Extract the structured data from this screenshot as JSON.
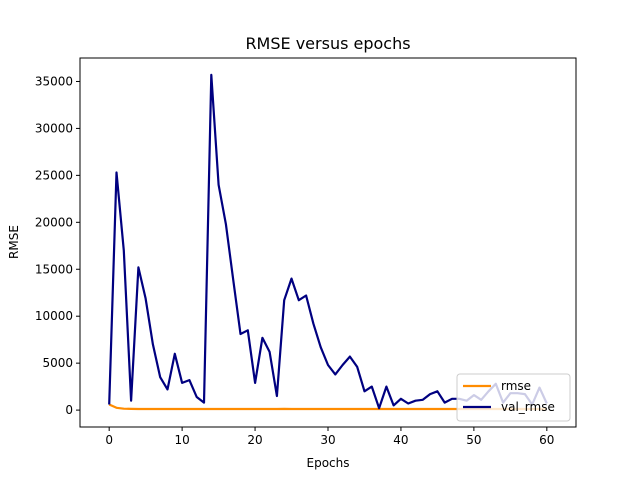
{
  "chart_data": {
    "type": "line",
    "title": "RMSE versus epochs",
    "xlabel": "Epochs",
    "ylabel": "RMSE",
    "xlim": [
      -4,
      64
    ],
    "ylim": [
      -1800,
      37500
    ],
    "xticks": [
      0,
      10,
      20,
      30,
      40,
      50,
      60
    ],
    "yticks": [
      0,
      5000,
      10000,
      15000,
      20000,
      25000,
      30000,
      35000
    ],
    "grid": false,
    "legend_position": "lower-right",
    "series": [
      {
        "name": "rmse",
        "color": "#ff8c00",
        "x": [
          0,
          1,
          2,
          3,
          4,
          5,
          6,
          7,
          8,
          9,
          10,
          11,
          12,
          13,
          14,
          15,
          16,
          17,
          18,
          19,
          20,
          21,
          22,
          23,
          24,
          25,
          26,
          27,
          28,
          29,
          30,
          31,
          32,
          33,
          34,
          35,
          36,
          37,
          38,
          39,
          40,
          41,
          42,
          43,
          44,
          45,
          46,
          47,
          48,
          49,
          50,
          51,
          52,
          53,
          54,
          55,
          56,
          57,
          58,
          59,
          60
        ],
        "y": [
          600,
          250,
          150,
          130,
          120,
          120,
          120,
          120,
          120,
          120,
          120,
          120,
          120,
          120,
          120,
          120,
          120,
          120,
          120,
          120,
          120,
          120,
          120,
          120,
          130,
          120,
          120,
          120,
          120,
          120,
          120,
          120,
          120,
          120,
          120,
          120,
          120,
          120,
          120,
          120,
          120,
          120,
          120,
          120,
          120,
          120,
          120,
          120,
          120,
          120,
          120,
          120,
          120,
          120,
          120,
          120,
          120,
          120,
          120,
          120,
          120
        ]
      },
      {
        "name": "val_rmse",
        "color": "#000080",
        "x": [
          0,
          1,
          2,
          3,
          4,
          5,
          6,
          7,
          8,
          9,
          10,
          11,
          12,
          13,
          14,
          15,
          16,
          17,
          18,
          19,
          20,
          21,
          22,
          23,
          24,
          25,
          26,
          27,
          28,
          29,
          30,
          31,
          32,
          33,
          34,
          35,
          36,
          37,
          38,
          39,
          40,
          41,
          42,
          43,
          44,
          45,
          46,
          47,
          48,
          49,
          50,
          51,
          52,
          53,
          54,
          55,
          56,
          57,
          58,
          59,
          60
        ],
        "y": [
          600,
          25300,
          17000,
          1000,
          15200,
          11900,
          7000,
          3500,
          2200,
          6000,
          2900,
          3200,
          1400,
          800,
          35700,
          24000,
          19800,
          13900,
          8100,
          8500,
          2900,
          7700,
          6200,
          1500,
          11700,
          14000,
          11700,
          12200,
          9200,
          6700,
          4800,
          3800,
          4800,
          5700,
          4600,
          2000,
          2500,
          200,
          2500,
          500,
          1200,
          700,
          1000,
          1100,
          1700,
          2000,
          800,
          1200,
          1200,
          1000,
          1600,
          1100,
          2000,
          2800,
          800,
          1800,
          1800,
          1700,
          600,
          2400,
          700
        ]
      }
    ]
  }
}
